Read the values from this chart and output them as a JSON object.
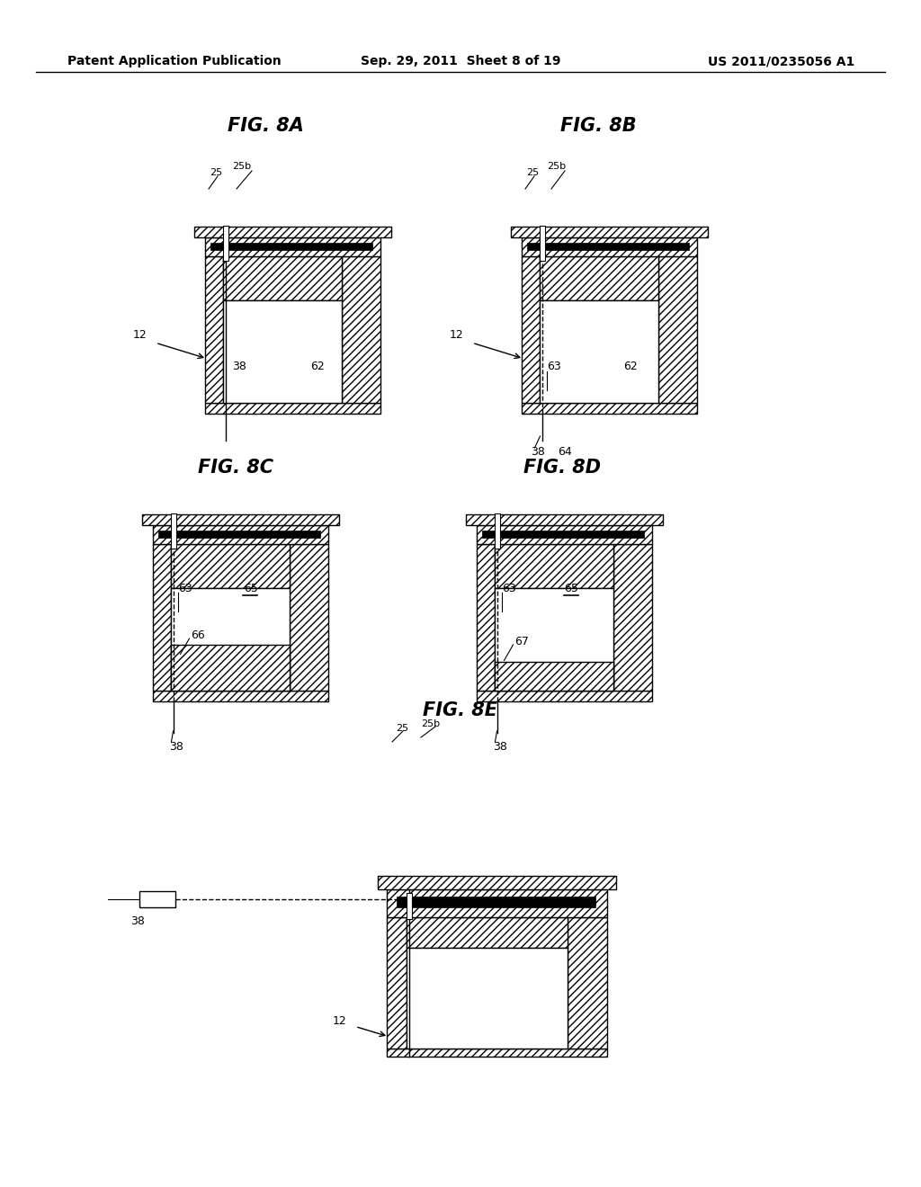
{
  "bg_color": "#ffffff",
  "header_left": "Patent Application Publication",
  "header_center": "Sep. 29, 2011  Sheet 8 of 19",
  "header_right": "US 2011/0235056 A1",
  "line_width": 1.0,
  "hatch_density": "////"
}
